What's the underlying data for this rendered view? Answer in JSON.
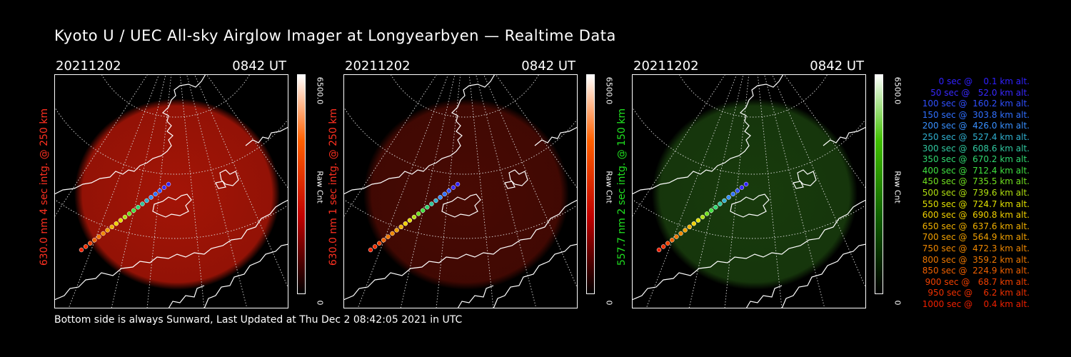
{
  "title": "Kyoto U / UEC All-sky Airglow Imager at Longyearbyen — Realtime Data",
  "footer": "Bottom side is always Sunward, Last Updated at Thu Dec  2 08:42:05 2021 in UTC",
  "panels": [
    {
      "date": "20211202",
      "time": "0842 UT",
      "label": "630.0 nm  4 sec intg. @ 250 km",
      "label_color": "#ff3020",
      "cbar_label": "Raw Cnt",
      "cbar_max": "6500.0",
      "cbar_min": "0",
      "cbar_colors": [
        "#ffffff",
        "#ff6000",
        "#c00000",
        "#000000"
      ],
      "glow_color": "#c01808",
      "glow_opacity": 0.85
    },
    {
      "date": "20211202",
      "time": "0842 UT",
      "label": "630.0 nm  1 sec intg. @ 250 km",
      "label_color": "#ff3020",
      "cbar_label": "Raw Cnt",
      "cbar_max": "6500.0",
      "cbar_min": "0",
      "cbar_colors": [
        "#ffffff",
        "#ff6000",
        "#c00000",
        "#000000"
      ],
      "glow_color": "#5a0c04",
      "glow_opacity": 0.8
    },
    {
      "date": "20211202",
      "time": "0842 UT",
      "label": "557.7 nm  2 sec intg. @ 150 km",
      "label_color": "#20e020",
      "cbar_label": "Raw Cnt",
      "cbar_max": "6500.0",
      "cbar_min": "0",
      "cbar_colors": [
        "#ffffff",
        "#40c000",
        "#106000",
        "#000000"
      ],
      "glow_color": "#1e4a10",
      "glow_opacity": 0.8
    }
  ],
  "legend": [
    {
      "text": "   0 sec @    0.1 km alt.",
      "color": "#3020ff"
    },
    {
      "text": "  50 sec @   52.0 km alt.",
      "color": "#3828ff"
    },
    {
      "text": " 100 sec @  160.2 km alt.",
      "color": "#3050ff"
    },
    {
      "text": " 150 sec @  303.8 km alt.",
      "color": "#3070ff"
    },
    {
      "text": " 200 sec @  426.0 km alt.",
      "color": "#3890ff"
    },
    {
      "text": " 250 sec @  527.4 km alt.",
      "color": "#30b0d0"
    },
    {
      "text": " 300 sec @  608.6 km alt.",
      "color": "#30c8a0"
    },
    {
      "text": " 350 sec @  670.2 km alt.",
      "color": "#30d870"
    },
    {
      "text": " 400 sec @  712.4 km alt.",
      "color": "#40e040"
    },
    {
      "text": " 450 sec @  735.5 km alt.",
      "color": "#70e020"
    },
    {
      "text": " 500 sec @  739.6 km alt.",
      "color": "#b0e010"
    },
    {
      "text": " 550 sec @  724.7 km alt.",
      "color": "#e0e000"
    },
    {
      "text": " 600 sec @  690.8 km alt.",
      "color": "#f0d000"
    },
    {
      "text": " 650 sec @  637.6 km alt.",
      "color": "#f0b000"
    },
    {
      "text": " 700 sec @  564.9 km alt.",
      "color": "#f0a000"
    },
    {
      "text": " 750 sec @  472.3 km alt.",
      "color": "#f08800"
    },
    {
      "text": " 800 sec @  359.2 km alt.",
      "color": "#f07800"
    },
    {
      "text": " 850 sec @  224.9 km alt.",
      "color": "#f06000"
    },
    {
      "text": " 900 sec @   68.7 km alt.",
      "color": "#f04000"
    },
    {
      "text": " 950 sec @    6.2 km alt.",
      "color": "#f03000"
    },
    {
      "text": "1000 sec @    0.4 km alt.",
      "color": "#f02000"
    }
  ]
}
